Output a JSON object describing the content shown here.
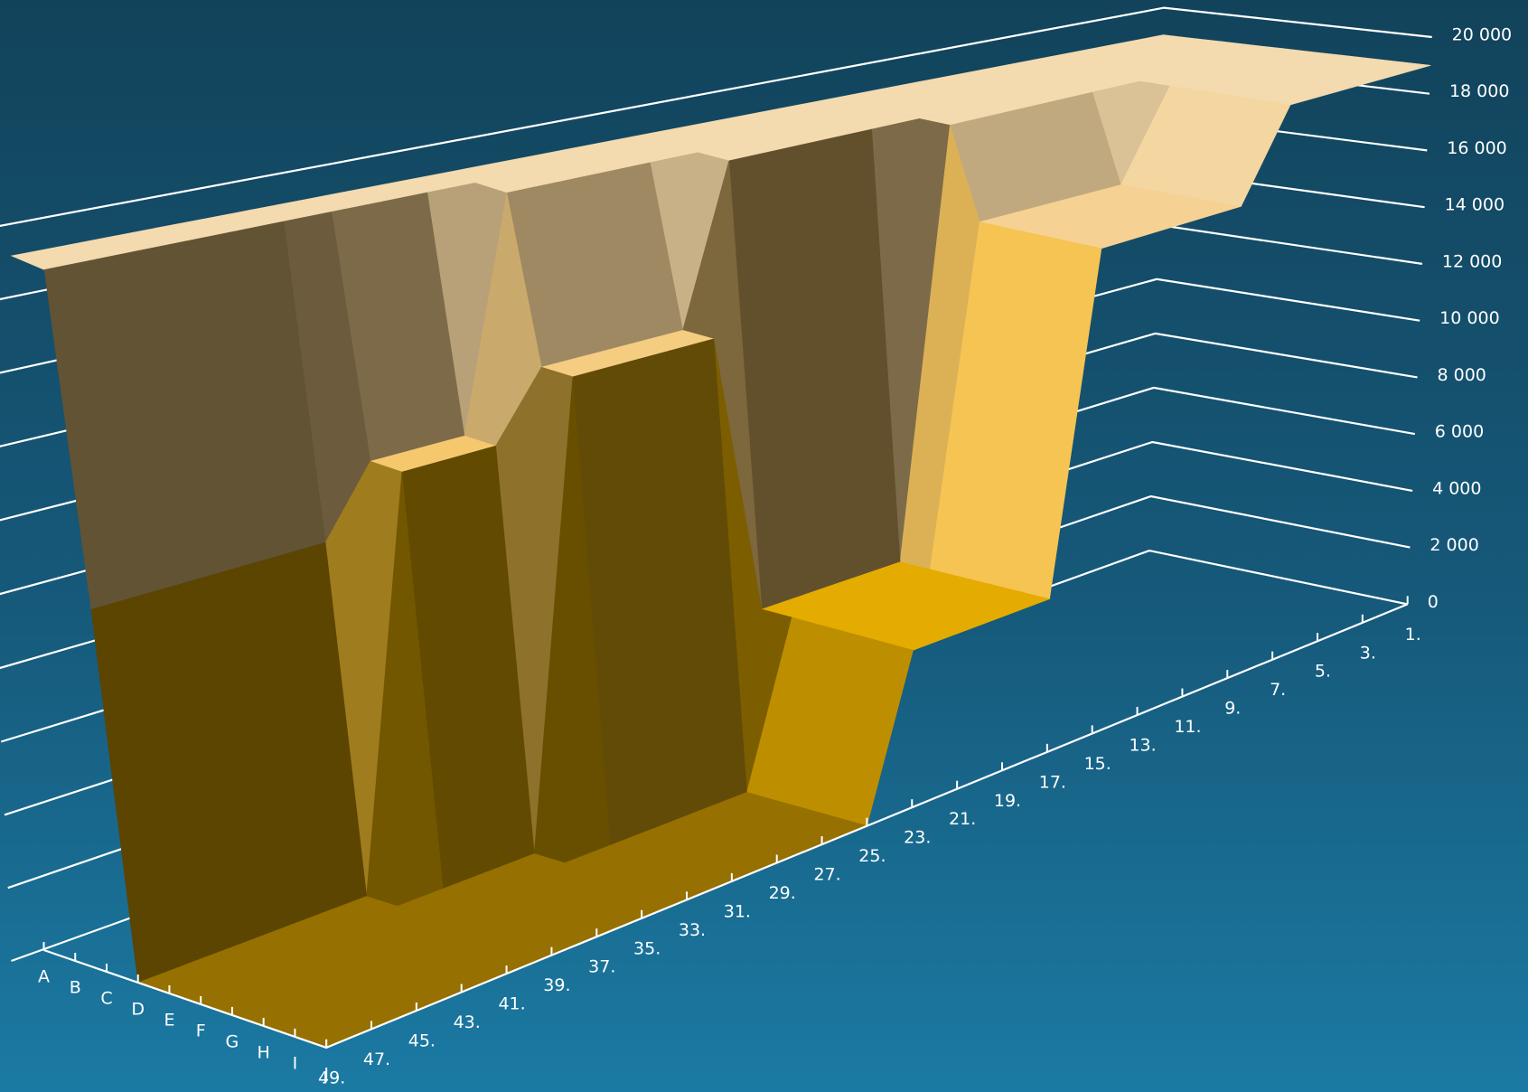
{
  "chart_data": {
    "type": "surface3d",
    "columns": [
      "A",
      "B",
      "C",
      "D",
      "E",
      "F",
      "G",
      "H",
      "I",
      "J"
    ],
    "rows": [
      "1.",
      "3.",
      "5.",
      "7.",
      "9.",
      "11.",
      "13.",
      "15.",
      "17.",
      "19.",
      "21.",
      "23.",
      "25.",
      "27.",
      "29.",
      "31.",
      "33.",
      "35.",
      "37.",
      "39.",
      "41.",
      "43.",
      "45.",
      "47.",
      "49."
    ],
    "values": [
      [
        19000,
        19000,
        19000,
        19000,
        19000,
        19000,
        19000,
        19000,
        19000,
        19000
      ],
      [
        19000,
        19000,
        19000,
        19000,
        19000,
        19000,
        19000,
        19000,
        19000,
        19000
      ],
      [
        19000,
        19000,
        19000,
        19000,
        19000,
        19000,
        19000,
        19000,
        19000,
        19000
      ],
      [
        19000,
        19000,
        19000,
        19000,
        19000,
        19000,
        19000,
        19000,
        19000,
        19000
      ],
      [
        19000,
        19000,
        19000,
        19000,
        19000,
        16000,
        16000,
        16000,
        16000,
        16000
      ],
      [
        19000,
        19000,
        19000,
        19000,
        19000,
        16000,
        16000,
        16000,
        16000,
        16000
      ],
      [
        19000,
        19000,
        19000,
        19000,
        19000,
        16000,
        16000,
        16000,
        16000,
        16000
      ],
      [
        19000,
        19000,
        19000,
        19000,
        19000,
        16000,
        16000,
        16000,
        16000,
        16000
      ],
      [
        19000,
        19000,
        19000,
        19000,
        5000,
        5000,
        5000,
        5000,
        5000,
        5000
      ],
      [
        19000,
        19000,
        19000,
        19000,
        5000,
        5000,
        5000,
        5000,
        5000,
        5000
      ],
      [
        19000,
        19000,
        19000,
        19000,
        5000,
        5000,
        5000,
        5000,
        5000,
        5000
      ],
      [
        19000,
        19000,
        19000,
        19000,
        5000,
        5000,
        5000,
        5000,
        5000,
        5000
      ],
      [
        19000,
        19000,
        19000,
        14000,
        14000,
        0,
        0,
        0,
        0,
        0
      ],
      [
        19000,
        19000,
        19000,
        14000,
        14000,
        0,
        0,
        0,
        0,
        0
      ],
      [
        19000,
        19000,
        19000,
        14000,
        14000,
        0,
        0,
        0,
        0,
        0
      ],
      [
        19000,
        19000,
        19000,
        14000,
        14000,
        0,
        0,
        0,
        0,
        0
      ],
      [
        19000,
        19000,
        12000,
        12000,
        0,
        0,
        0,
        0,
        0,
        0
      ],
      [
        19000,
        19000,
        12000,
        12000,
        0,
        0,
        0,
        0,
        0,
        0
      ],
      [
        19000,
        19000,
        12000,
        12000,
        0,
        0,
        0,
        0,
        0,
        0
      ],
      [
        19000,
        19000,
        10000,
        0,
        0,
        0,
        0,
        0,
        0,
        0
      ],
      [
        19000,
        19000,
        10000,
        0,
        0,
        0,
        0,
        0,
        0,
        0
      ],
      [
        19000,
        19000,
        10000,
        0,
        0,
        0,
        0,
        0,
        0,
        0
      ],
      [
        19000,
        19000,
        10000,
        0,
        0,
        0,
        0,
        0,
        0,
        0
      ],
      [
        19000,
        19000,
        10000,
        0,
        0,
        0,
        0,
        0,
        0,
        0
      ],
      [
        19000,
        19000,
        10000,
        0,
        0,
        0,
        0,
        0,
        0,
        0
      ]
    ],
    "zlim": [
      0,
      20000
    ],
    "zticks": [
      0,
      {
        "value": 2000,
        "label": "2 000"
      },
      {
        "value": 4000,
        "label": "4 000"
      },
      {
        "value": 6000,
        "label": "6 000"
      },
      {
        "value": 8000,
        "label": "8 000"
      },
      {
        "value": 10000,
        "label": "10 000"
      },
      {
        "value": 12000,
        "label": "12 000"
      },
      {
        "value": 14000,
        "label": "14 000"
      },
      {
        "value": 16000,
        "label": "16 000"
      },
      {
        "value": 18000,
        "label": "18 000"
      },
      {
        "value": 20000,
        "label": "20 000"
      }
    ],
    "grid": true
  }
}
